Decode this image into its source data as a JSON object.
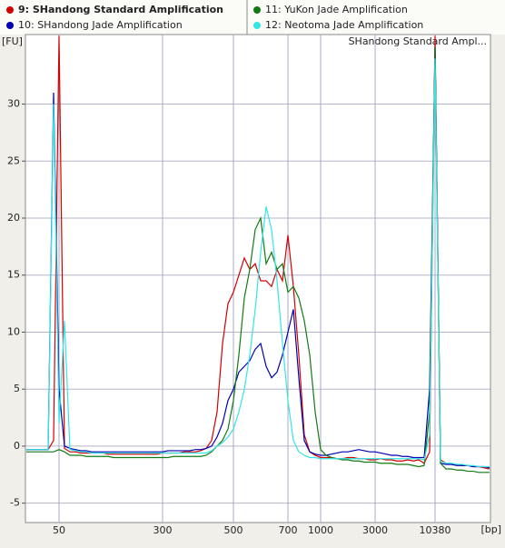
{
  "chart_data": {
    "type": "line",
    "y_label": "[FU]",
    "x_label": "[bp]",
    "annotation": "SHandong Standard Ampl...",
    "categories": [
      null,
      null,
      null,
      null,
      null,
      null,
      "50",
      null,
      null,
      null,
      null,
      null,
      null,
      null,
      null,
      null,
      null,
      null,
      null,
      null,
      null,
      null,
      null,
      null,
      null,
      "300",
      null,
      null,
      null,
      null,
      null,
      null,
      null,
      null,
      null,
      null,
      null,
      null,
      "500",
      null,
      null,
      null,
      null,
      null,
      null,
      null,
      null,
      null,
      "700",
      null,
      null,
      null,
      null,
      null,
      "1000",
      null,
      null,
      null,
      null,
      null,
      null,
      null,
      null,
      null,
      "3000",
      null,
      null,
      null,
      null,
      null,
      null,
      null,
      null,
      null,
      null,
      "10380",
      null,
      null,
      null,
      null,
      null,
      null,
      null,
      null,
      null,
      null
    ],
    "ylim": [
      -6.7,
      36.1
    ],
    "yticks": [
      -5,
      0,
      5,
      10,
      15,
      20,
      25,
      30
    ],
    "grid": true,
    "series": [
      {
        "name": "9: SHandong Standard Amplification",
        "color": "#d40000",
        "values": [
          -0.3,
          -0.3,
          -0.3,
          -0.3,
          -0.3,
          0.5,
          36,
          -0.2,
          -0.5,
          -0.5,
          -0.6,
          -0.6,
          -0.6,
          -0.6,
          -0.6,
          -0.7,
          -0.7,
          -0.7,
          -0.7,
          -0.7,
          -0.7,
          -0.7,
          -0.7,
          -0.7,
          -0.7,
          -0.6,
          -0.6,
          -0.6,
          -0.6,
          -0.5,
          -0.5,
          -0.5,
          -0.4,
          -0.2,
          0.5,
          3,
          9,
          12.5,
          13.5,
          15,
          16.5,
          15.5,
          16,
          14.5,
          14.5,
          14,
          15.5,
          14.5,
          18.5,
          14,
          8,
          1,
          -0.5,
          -0.8,
          -1,
          -1,
          -1,
          -1.1,
          -1.1,
          -1,
          -1,
          -1.1,
          -1.1,
          -1.2,
          -1.2,
          -1.1,
          -1.2,
          -1.2,
          -1.3,
          -1.3,
          -1.2,
          -1.3,
          -1.2,
          -1.5,
          -0.5,
          36,
          -1.2,
          -1.5,
          -1.6,
          -1.6,
          -1.7,
          -1.7,
          -1.8,
          -1.8,
          -1.9,
          -2
        ]
      },
      {
        "name": "10: SHandong Jade Amplification",
        "color": "#0000b4",
        "values": [
          -0.3,
          -0.3,
          -0.3,
          -0.3,
          -0.3,
          31,
          5,
          0,
          -0.2,
          -0.3,
          -0.4,
          -0.4,
          -0.5,
          -0.5,
          -0.5,
          -0.5,
          -0.5,
          -0.5,
          -0.5,
          -0.5,
          -0.5,
          -0.5,
          -0.5,
          -0.5,
          -0.5,
          -0.5,
          -0.4,
          -0.4,
          -0.4,
          -0.4,
          -0.4,
          -0.3,
          -0.3,
          -0.2,
          0,
          0.8,
          2,
          4,
          5,
          6.5,
          7,
          7.5,
          8.5,
          9,
          7,
          6,
          6.5,
          8,
          10,
          12,
          6,
          0.5,
          -0.5,
          -0.7,
          -0.8,
          -0.8,
          -0.7,
          -0.6,
          -0.5,
          -0.5,
          -0.4,
          -0.3,
          -0.4,
          -0.5,
          -0.5,
          -0.6,
          -0.7,
          -0.8,
          -0.8,
          -0.9,
          -0.9,
          -1,
          -1,
          -1,
          5,
          35,
          -1.5,
          -1.6,
          -1.6,
          -1.7,
          -1.7,
          -1.7,
          -1.8,
          -1.8,
          -1.8,
          -1.9
        ]
      },
      {
        "name": "11: YuKon Jade Amplification",
        "color": "#137a13",
        "values": [
          -0.5,
          -0.5,
          -0.5,
          -0.5,
          -0.5,
          -0.5,
          -0.3,
          -0.5,
          -0.8,
          -0.8,
          -0.8,
          -0.9,
          -0.9,
          -0.9,
          -0.9,
          -0.9,
          -1,
          -1,
          -1,
          -1,
          -1,
          -1,
          -1,
          -1,
          -1,
          -1,
          -1,
          -0.9,
          -0.9,
          -0.9,
          -0.9,
          -0.9,
          -0.9,
          -0.8,
          -0.5,
          0,
          0.5,
          1.5,
          4,
          8,
          13,
          15.5,
          19,
          20,
          16,
          17,
          15.5,
          16,
          13.5,
          14,
          13,
          11,
          8,
          3,
          -0.3,
          -0.8,
          -1,
          -1.1,
          -1.2,
          -1.2,
          -1.3,
          -1.3,
          -1.4,
          -1.4,
          -1.4,
          -1.5,
          -1.5,
          -1.5,
          -1.6,
          -1.6,
          -1.6,
          -1.7,
          -1.8,
          -1.7,
          3,
          35,
          -1.5,
          -2,
          -2,
          -2.1,
          -2.1,
          -2.2,
          -2.2,
          -2.3,
          -2.3,
          -2.3
        ]
      },
      {
        "name": "12: Neotoma Jade Amplification",
        "color": "#33e6e6",
        "values": [
          -0.3,
          -0.3,
          -0.3,
          -0.3,
          -0.3,
          30,
          2,
          11,
          -0.3,
          -0.4,
          -0.5,
          -0.5,
          -0.6,
          -0.6,
          -0.6,
          -0.6,
          -0.6,
          -0.6,
          -0.6,
          -0.6,
          -0.6,
          -0.6,
          -0.6,
          -0.6,
          -0.6,
          -0.6,
          -0.6,
          -0.6,
          -0.6,
          -0.6,
          -0.6,
          -0.6,
          -0.6,
          -0.6,
          -0.4,
          0,
          0.3,
          0.8,
          1.5,
          3,
          5,
          8,
          12,
          17,
          21,
          19,
          14.5,
          9,
          4,
          0.5,
          -0.5,
          -0.8,
          -1,
          -1,
          -1.1,
          -1.1,
          -1.1,
          -1.1,
          -1.1,
          -1.1,
          -1.1,
          -1.1,
          -1.1,
          -1.1,
          -1.1,
          -1.1,
          -1.1,
          -1.1,
          -1.1,
          -1.1,
          -1.1,
          -1.1,
          -1.1,
          -1.2,
          1,
          34,
          -1.3,
          -1.5,
          -1.5,
          -1.6,
          -1.6,
          -1.7,
          -1.7,
          -1.8,
          -1.8,
          -1.8
        ]
      }
    ]
  }
}
